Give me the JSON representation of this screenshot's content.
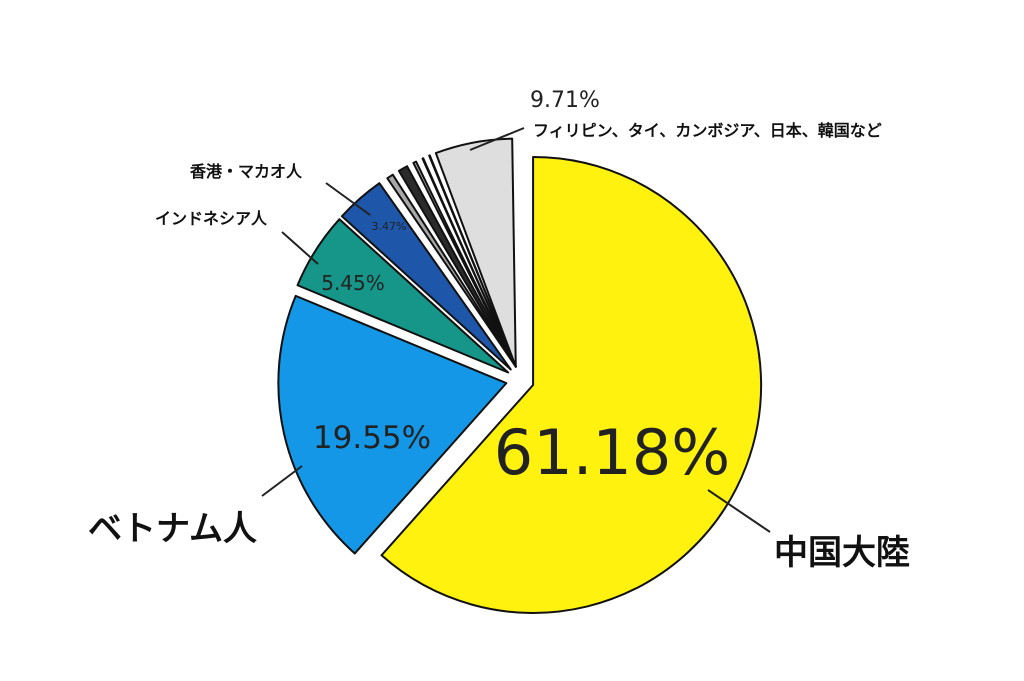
{
  "chart_data": {
    "type": "pie",
    "title": "",
    "start_angle_deg": 0,
    "direction": "clockwise",
    "slices": [
      {
        "label": "中国大陸",
        "value": 61.18,
        "value_label": "61.18%",
        "color": "#FFF20F",
        "exploded": true
      },
      {
        "label": "ベトナム人",
        "value": 19.55,
        "value_label": "19.55%",
        "color": "#1597E8",
        "exploded": true
      },
      {
        "label": "インドネシア人",
        "value": 5.45,
        "value_label": "5.45%",
        "color": "#159688",
        "exploded": true
      },
      {
        "label": "香港・マカオ人",
        "value": 3.47,
        "value_label": "3.47%",
        "color": "#1E56AA",
        "exploded": true
      },
      {
        "label": "フィリピン、タイ、カンボジア、日本、韓国など",
        "value": 9.71,
        "value_label": "9.71%",
        "color": "#dddddd",
        "exploded": true,
        "sub_slices": [
          {
            "value": 0.95,
            "color": "#a8a8a8"
          },
          {
            "value": 1.15,
            "color": "#2b2b2b"
          },
          {
            "value": 0.7,
            "color": "#b5b5b5"
          },
          {
            "value": 0.55,
            "color": "#777777"
          },
          {
            "value": 0.45,
            "color": "#111111"
          },
          {
            "value": 5.91,
            "color": "#dedede"
          }
        ]
      }
    ]
  }
}
